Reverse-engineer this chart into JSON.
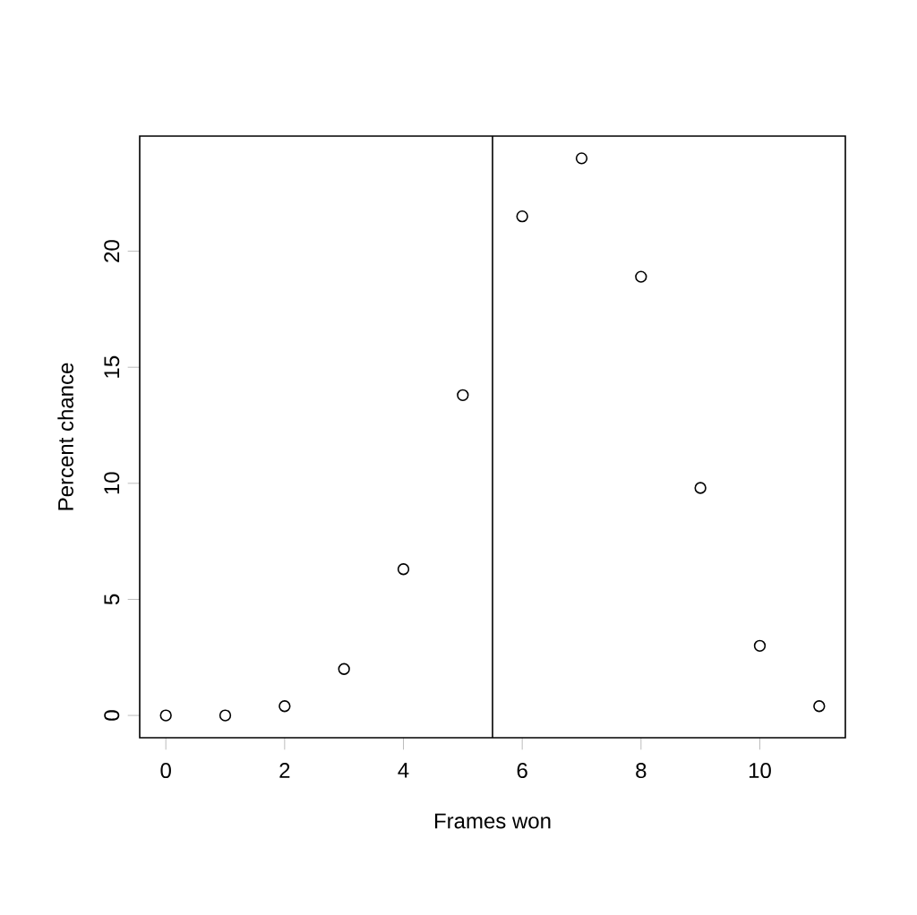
{
  "chart_data": {
    "type": "scatter",
    "xlabel": "Frames won",
    "ylabel": "Percent chance",
    "x": [
      0,
      1,
      2,
      3,
      4,
      5,
      6,
      7,
      8,
      9,
      10,
      11
    ],
    "values": [
      0,
      0,
      0.4,
      2.0,
      6.3,
      13.8,
      21.5,
      24.0,
      18.9,
      9.8,
      3.0,
      0.4
    ],
    "color": "#000000",
    "marker": "circle",
    "xlim": [
      -0.44,
      11.44
    ],
    "ylim": [
      -0.96,
      24.96
    ],
    "xticks": [
      0,
      2,
      4,
      6,
      8,
      10
    ],
    "yticks": [
      0,
      5,
      10,
      15,
      20
    ],
    "ref_lines": [
      {
        "axis": "x",
        "value": 5.5,
        "color": "#000000"
      }
    ]
  }
}
